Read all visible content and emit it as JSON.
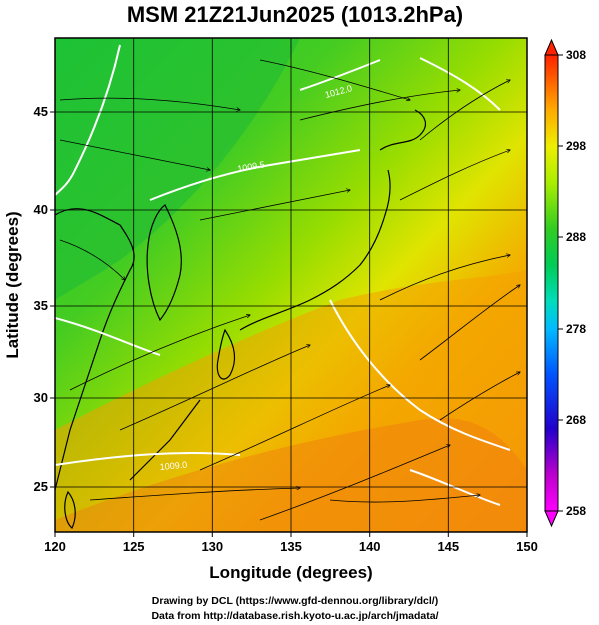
{
  "title": "MSM 21Z21Jun2025 (1013.2hPa)",
  "xaxis": {
    "label": "Longitude (degrees)",
    "ticks": [
      "120",
      "125",
      "130",
      "135",
      "140",
      "145",
      "150"
    ],
    "range": [
      120,
      150
    ]
  },
  "yaxis": {
    "label": "Latitude  (degrees)",
    "ticks": [
      "25",
      "30",
      "35",
      "40",
      "45"
    ],
    "range": [
      22.4,
      47.6
    ]
  },
  "colorbar": {
    "ticks": [
      "258",
      "268",
      "278",
      "288",
      "298",
      "308"
    ],
    "min": 258,
    "max": 308,
    "colors": [
      "#ff00ff",
      "#cc00cc",
      "#3300cc",
      "#0044ff",
      "#00aaff",
      "#00ddcc",
      "#00cc66",
      "#22cc22",
      "#66dd00",
      "#aaee00",
      "#eeee00",
      "#ffcc00",
      "#ffaa00",
      "#ff8800",
      "#ff5500",
      "#ff2200"
    ]
  },
  "contour_labels": [
    "1009.5",
    "1012.0",
    "1009.0"
  ],
  "credits": [
    "Drawing by DCL (https://www.gfd-dennou.org/library/dcl/)",
    "Data from http://database.rish.kyoto-u.ac.jp/arch/jmadata/"
  ]
}
